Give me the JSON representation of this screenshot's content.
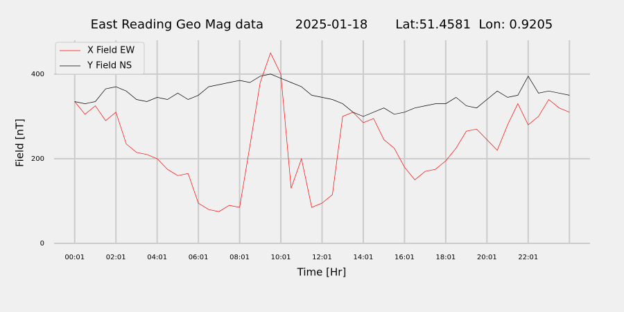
{
  "chart_data": {
    "type": "line",
    "title": "East Reading Geo Mag data        2025-01-18       Lat:51.4581  Lon: 0.9205",
    "xlabel": "Time  [Hr]",
    "ylabel": "Field  [nT]",
    "x": [
      0,
      0.5,
      1,
      1.5,
      2,
      2.5,
      3,
      3.5,
      4,
      4.5,
      5,
      5.5,
      6,
      6.5,
      7,
      7.5,
      8,
      8.5,
      9,
      9.5,
      10,
      10.5,
      11,
      11.5,
      12,
      12.5,
      13,
      13.5,
      14,
      14.5,
      15,
      15.5,
      16,
      16.5,
      17,
      17.5,
      18,
      18.5,
      19,
      19.5,
      20,
      20.5,
      21,
      21.5,
      22,
      22.5,
      23,
      23.5,
      24
    ],
    "series": [
      {
        "name": "X Field EW",
        "color": "#ff0000",
        "values": [
          335,
          305,
          325,
          290,
          310,
          235,
          215,
          210,
          200,
          175,
          160,
          165,
          95,
          80,
          75,
          90,
          85,
          230,
          380,
          450,
          400,
          130,
          200,
          85,
          95,
          115,
          300,
          310,
          285,
          295,
          245,
          225,
          180,
          150,
          170,
          175,
          195,
          225,
          265,
          270,
          245,
          220,
          280,
          330,
          280,
          300,
          340,
          320,
          310
        ]
      },
      {
        "name": "Y Field NS",
        "color": "#000000",
        "values": [
          335,
          330,
          335,
          365,
          370,
          360,
          340,
          335,
          345,
          340,
          355,
          340,
          350,
          370,
          375,
          380,
          385,
          380,
          395,
          400,
          390,
          380,
          370,
          350,
          345,
          340,
          330,
          310,
          300,
          310,
          320,
          305,
          310,
          320,
          325,
          330,
          330,
          345,
          325,
          320,
          340,
          360,
          345,
          350,
          395,
          355,
          360,
          355,
          350
        ]
      }
    ],
    "xlim": [
      -1,
      25
    ],
    "ylim": [
      0,
      480
    ],
    "xticks": [
      {
        "value": 0,
        "label": "00:01"
      },
      {
        "value": 2,
        "label": "02:01"
      },
      {
        "value": 4,
        "label": "04:01"
      },
      {
        "value": 6,
        "label": "06:01"
      },
      {
        "value": 8,
        "label": "08:01"
      },
      {
        "value": 10,
        "label": "10:01"
      },
      {
        "value": 12,
        "label": "12:01"
      },
      {
        "value": 14,
        "label": "14:01"
      },
      {
        "value": 16,
        "label": "16:01"
      },
      {
        "value": 18,
        "label": "18:01"
      },
      {
        "value": 20,
        "label": "20:01"
      },
      {
        "value": 22,
        "label": "22:01"
      },
      {
        "value": 24,
        "label": null
      }
    ],
    "yticks": [
      0,
      200,
      400
    ],
    "grid": true,
    "legend": "upper-left"
  }
}
